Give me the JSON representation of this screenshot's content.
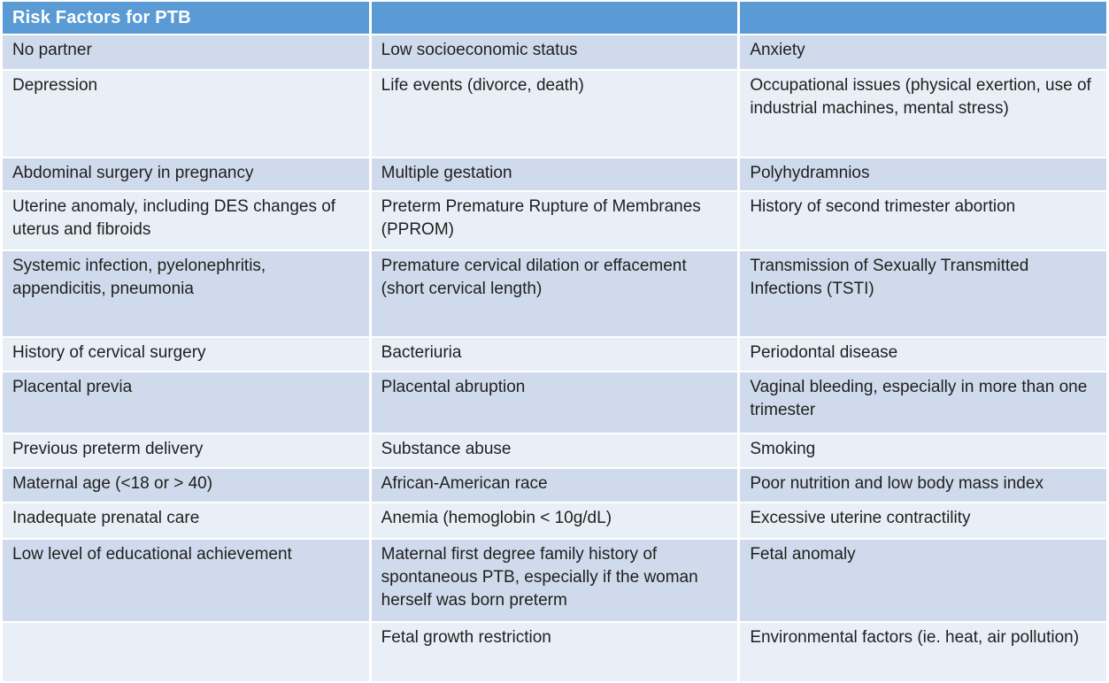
{
  "header": {
    "cells": [
      "Risk Factors for PTB",
      "",
      ""
    ]
  },
  "colors": {
    "header_bg": "#5b9bd5",
    "band_dark": "#cfdbec",
    "band_light": "#e9eff7",
    "header_text": "#ffffff",
    "body_text": "#1f1f1f"
  },
  "table": {
    "rows": [
      [
        "No partner",
        "Low socioeconomic status",
        "Anxiety"
      ],
      [
        "Depression",
        "Life events (divorce, death)",
        "Occupational issues (physical exertion, use of industrial machines, mental stress)"
      ],
      [
        "Abdominal surgery in pregnancy",
        "Multiple gestation",
        "Polyhydramnios"
      ],
      [
        "Uterine anomaly, including DES changes of uterus and fibroids",
        "Preterm Premature Rupture of Membranes (PPROM)",
        "History of second trimester abortion"
      ],
      [
        "Systemic infection, pyelonephritis, appendicitis, pneumonia",
        "Premature cervical dilation or effacement (short cervical length)",
        "Transmission of Sexually Transmitted Infections (TSTI)"
      ],
      [
        "History of cervical surgery",
        "Bacteriuria",
        "Periodontal disease"
      ],
      [
        "Placental previa",
        "Placental abruption",
        "Vaginal bleeding, especially in more than one trimester"
      ],
      [
        "Previous preterm delivery",
        "Substance abuse",
        "Smoking"
      ],
      [
        "Maternal age (<18 or > 40)",
        "African-American race",
        "Poor nutrition and low body mass index"
      ],
      [
        "Inadequate prenatal care",
        "Anemia (hemoglobin < 10g/dL)",
        "Excessive uterine contractility"
      ],
      [
        "Low level of educational achievement",
        "Maternal first degree family history of spontaneous PTB, especially if the woman herself was born preterm",
        "Fetal anomaly"
      ],
      [
        "",
        "Fetal growth restriction",
        "Environmental factors (ie. heat, air pollution)"
      ]
    ]
  }
}
